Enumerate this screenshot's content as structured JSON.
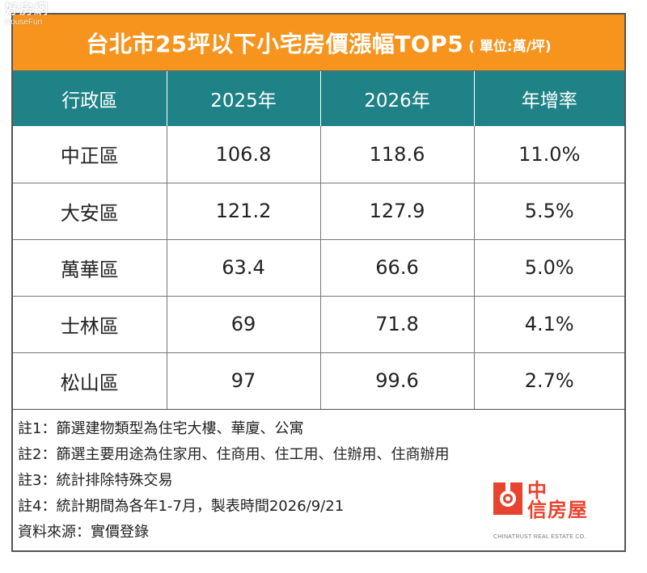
{
  "watermark": {
    "cn": "好房網",
    "en": "HouseFun"
  },
  "title": {
    "main": "台北市25坪以下小宅房價漲幅TOP5",
    "unit": "( 單位:萬/坪)"
  },
  "table": {
    "headers": [
      "行政區",
      "2025年",
      "2026年",
      "年增率"
    ],
    "rows": [
      [
        "中正區",
        "106.8",
        "118.6",
        "11.0%"
      ],
      [
        "大安區",
        "121.2",
        "127.9",
        "5.5%"
      ],
      [
        "萬華區",
        "63.4",
        "66.6",
        "5.0%"
      ],
      [
        "士林區",
        "69",
        "71.8",
        "4.1%"
      ],
      [
        "松山區",
        "97",
        "99.6",
        "2.7%"
      ]
    ]
  },
  "notes": [
    "註1：篩選建物類型為住宅大樓、華廈、公寓",
    "註2：篩選主要用途為住家用、住商用、住工用、住辦用、住商辦用",
    "註3：統計排除特殊交易",
    "註4：統計期間為各年1-7月，製表時間2026/9/21",
    "資料來源：實價登錄"
  ],
  "logo": {
    "cn_line1": "中",
    "cn_line2": "信房屋",
    "en": "CHINATRUST REAL ESTATE CO."
  },
  "colors": {
    "title_bg": "#f7941d",
    "header_bg": "#1f8287",
    "logo_red": "#e8432e"
  }
}
